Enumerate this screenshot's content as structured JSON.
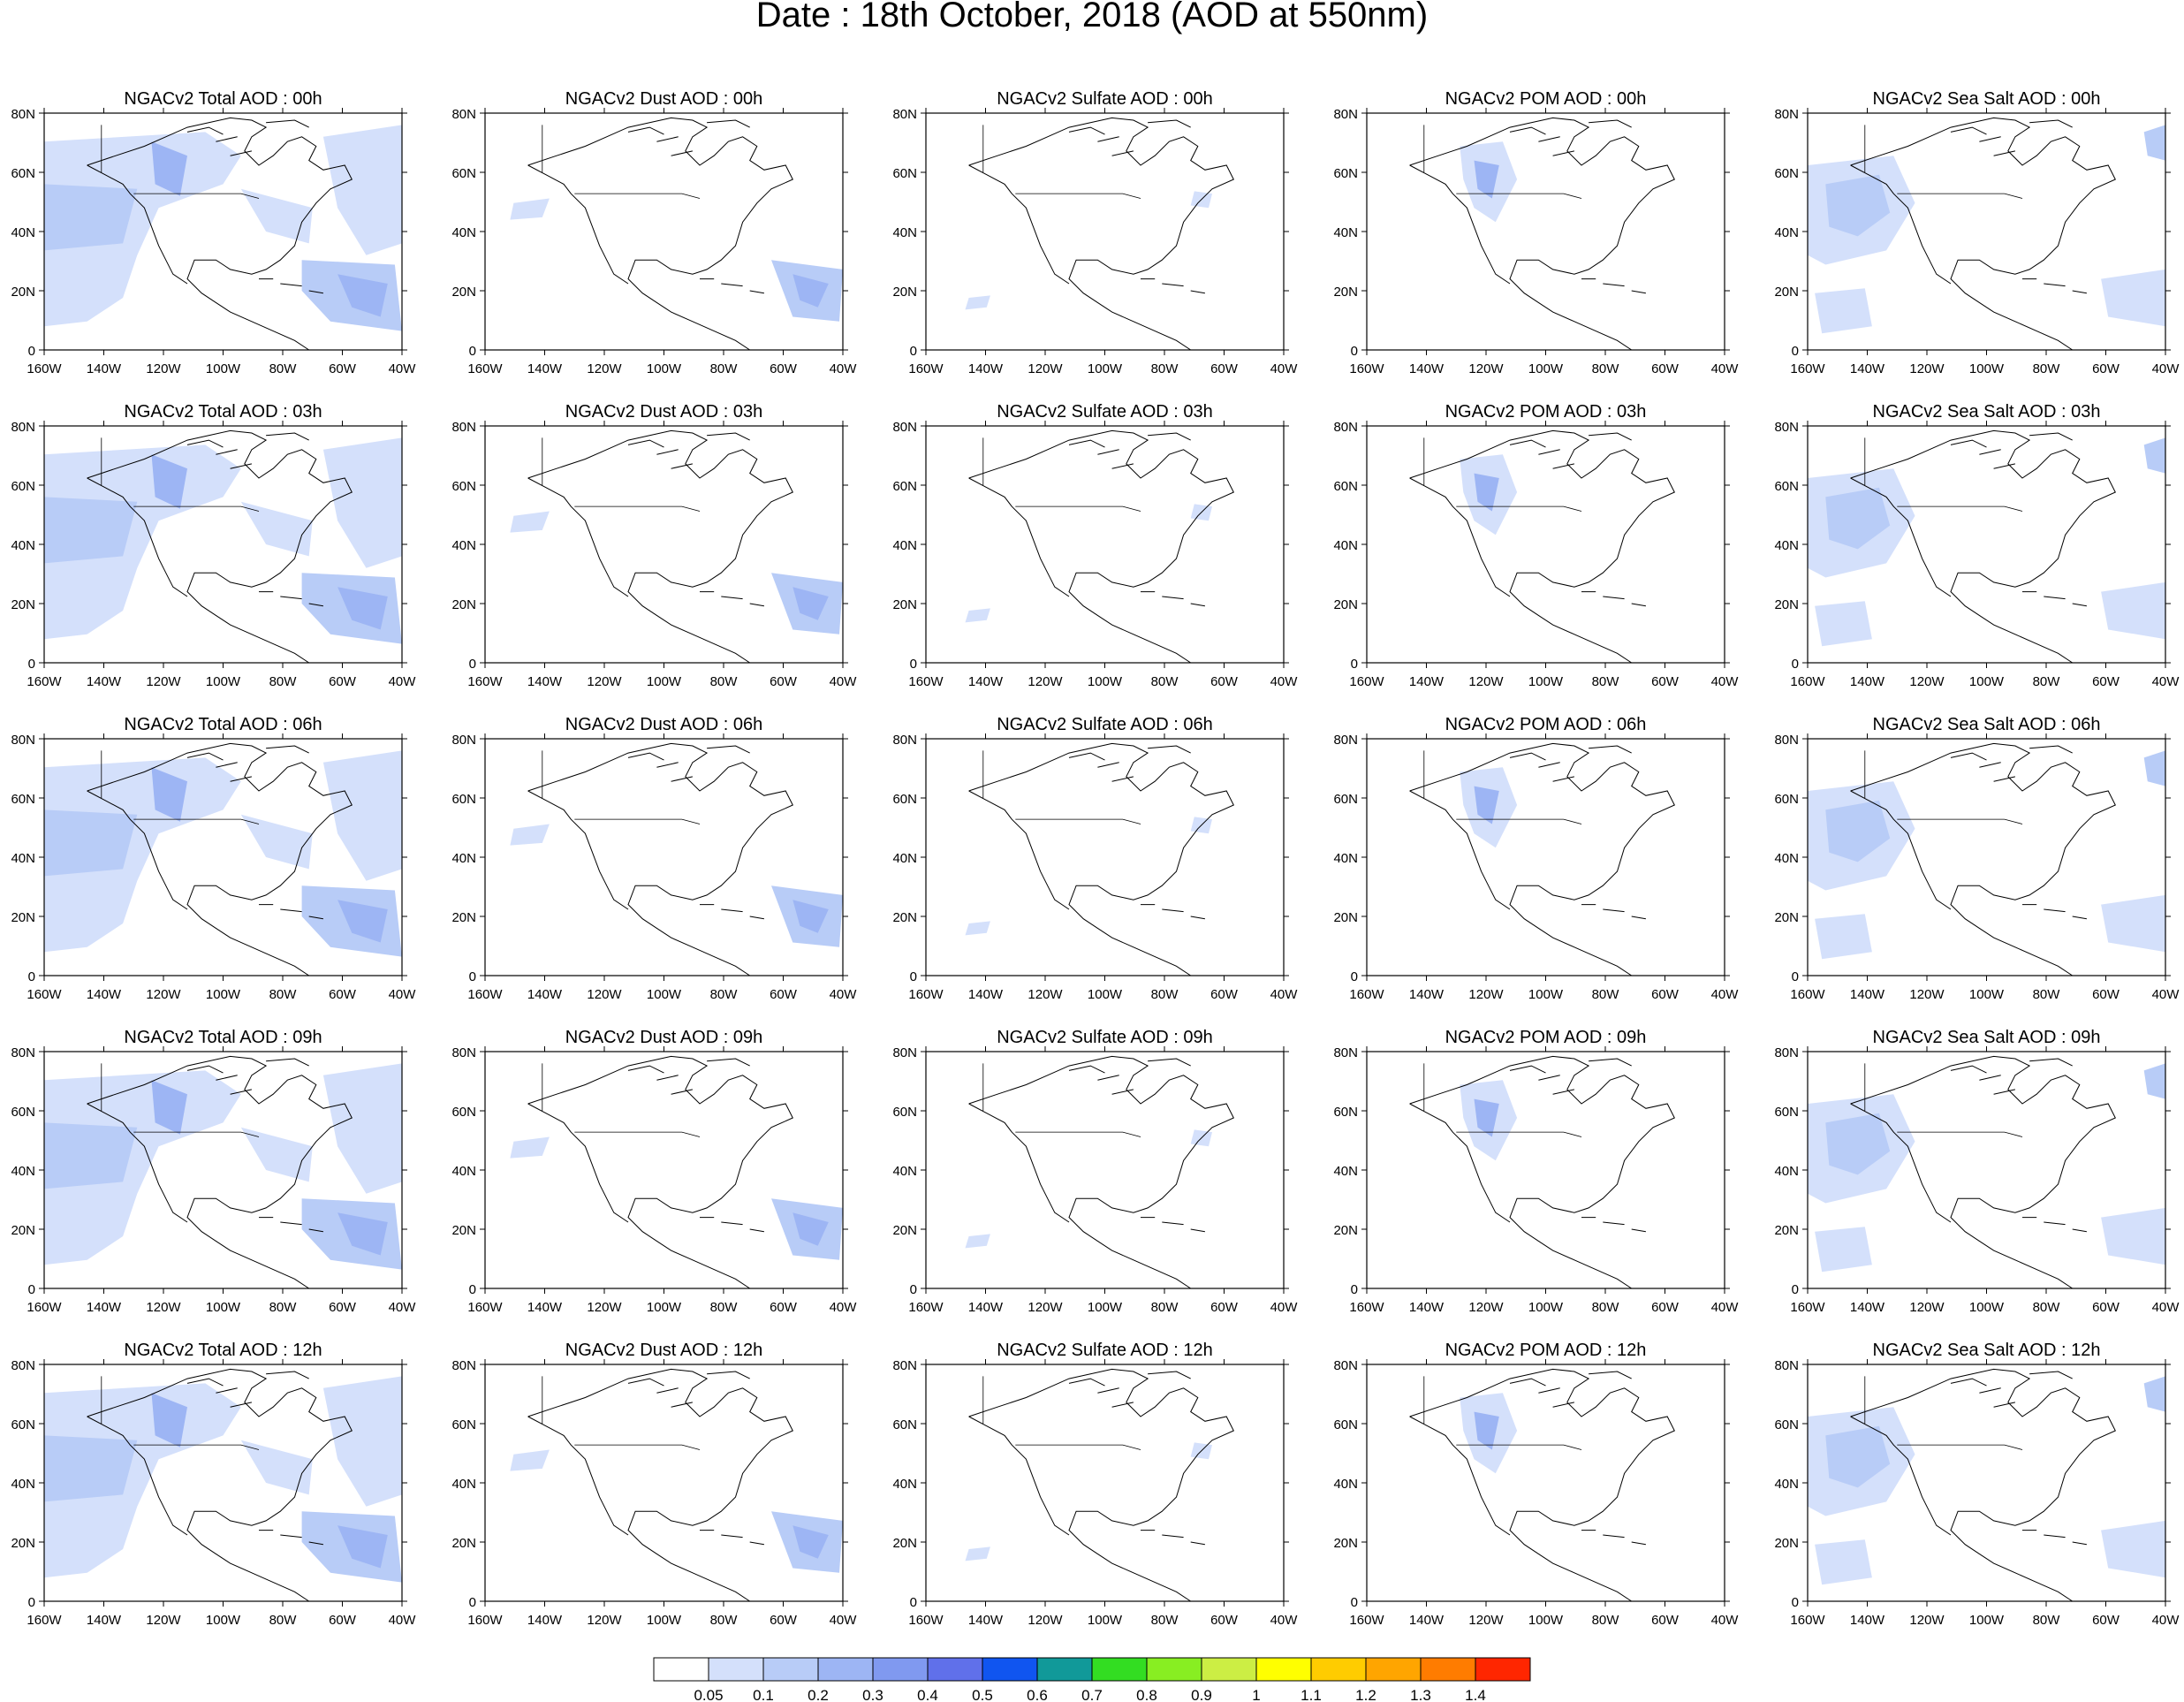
{
  "title": "Date : 18th October, 2018 (AOD at 550nm)",
  "panels": [
    [
      "NGACv2 Total AOD : 00h",
      "NGACv2 Dust AOD : 00h",
      "NGACv2 Sulfate AOD : 00h",
      "NGACv2 POM AOD : 00h",
      "NGACv2 Sea Salt AOD : 00h"
    ],
    [
      "NGACv2 Total AOD : 03h",
      "NGACv2 Dust AOD : 03h",
      "NGACv2 Sulfate AOD : 03h",
      "NGACv2 POM AOD : 03h",
      "NGACv2 Sea Salt AOD : 03h"
    ],
    [
      "NGACv2 Total AOD : 06h",
      "NGACv2 Dust AOD : 06h",
      "NGACv2 Sulfate AOD : 06h",
      "NGACv2 POM AOD : 06h",
      "NGACv2 Sea Salt AOD : 06h"
    ],
    [
      "NGACv2 Total AOD : 09h",
      "NGACv2 Dust AOD : 09h",
      "NGACv2 Sulfate AOD : 09h",
      "NGACv2 POM AOD : 09h",
      "NGACv2 Sea Salt  AOD : 09h"
    ],
    [
      "NGACv2 Total AOD  : 12h",
      "NGACv2 Dust AOD : 12h",
      "NGACv2 Sulfate AOD : 12h",
      "NGACv2 POM  AOD : 12h",
      "NGACv2 Sea Salt  AOD : 12h"
    ]
  ],
  "lat_ticks": [
    "80N",
    "60N",
    "40N",
    "20N",
    "0"
  ],
  "lon_ticks": [
    "160W",
    "140W",
    "120W",
    "100W",
    "80W",
    "60W",
    "40W"
  ],
  "colorbar": {
    "labels": [
      "0.05",
      "0.1",
      "0.2",
      "0.3",
      "0.4",
      "0.5",
      "0.6",
      "0.7",
      "0.8",
      "0.9",
      "1",
      "1.1",
      "1.2",
      "1.3",
      "1.4"
    ],
    "colors": [
      "#ffffff",
      "#d4e0fb",
      "#b8ccf7",
      "#9db5f4",
      "#8099f0",
      "#6070ea",
      "#1055f0",
      "#119999",
      "#33dd22",
      "#88ee22",
      "#ccee44",
      "#ffff00",
      "#ffcc00",
      "#ffa500",
      "#ff7c00",
      "#ff2600"
    ]
  },
  "blob_colors": {
    "c1": "#d4e0fb",
    "c2": "#b8ccf7",
    "c3": "#9db5f4"
  }
}
